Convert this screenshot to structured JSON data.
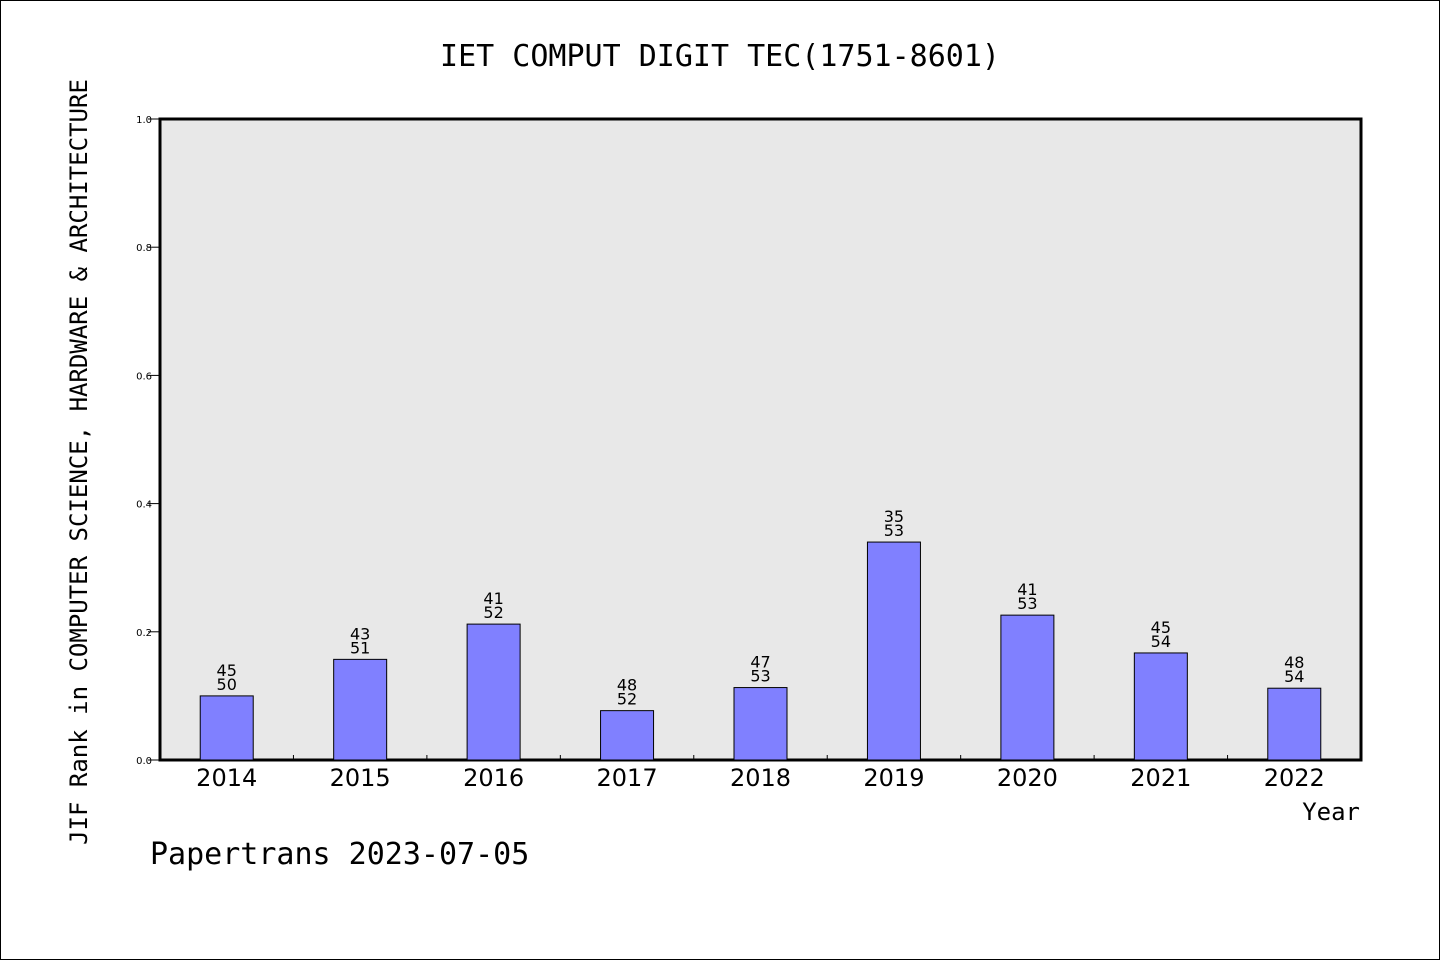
{
  "chart_data": {
    "type": "bar",
    "title": "IET COMPUT DIGIT TEC(1751-8601)",
    "xlabel": "Year",
    "ylabel": "JIF Rank in COMPUTER SCIENCE, HARDWARE & ARCHITECTURE",
    "ylim": [
      0,
      1.0
    ],
    "yticks": [
      "0.0",
      "0.2",
      "0.4",
      "0.6",
      "0.8",
      "1.0"
    ],
    "categories": [
      "2014",
      "2015",
      "2016",
      "2017",
      "2018",
      "2019",
      "2020",
      "2021",
      "2022"
    ],
    "values": [
      0.1,
      0.157,
      0.212,
      0.077,
      0.113,
      0.34,
      0.226,
      0.167,
      0.112
    ],
    "rank": [
      "45",
      "43",
      "41",
      "48",
      "47",
      "35",
      "41",
      "45",
      "48"
    ],
    "total": [
      "50",
      "51",
      "52",
      "52",
      "53",
      "53",
      "53",
      "54",
      "54"
    ],
    "bar_color": "#8080ff",
    "plot_bg": "#e8e8e8",
    "grid": false,
    "footer": "Papertrans 2023-07-05"
  }
}
